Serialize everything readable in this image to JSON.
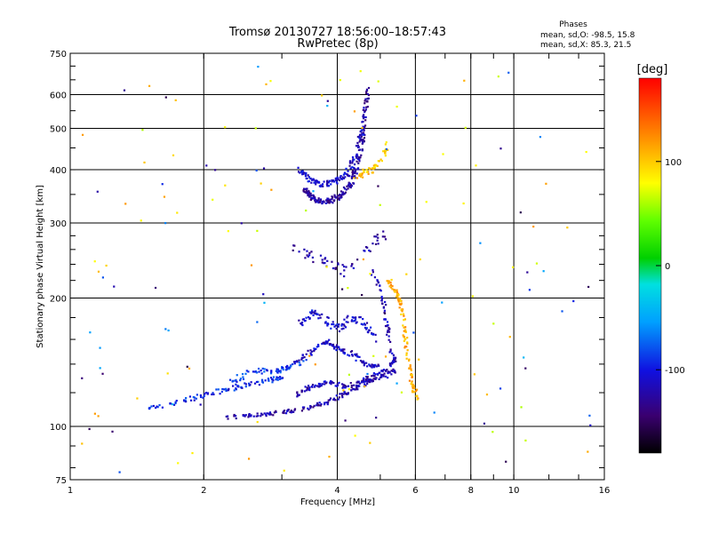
{
  "chart_data": {
    "type": "scatter",
    "title_line1": "Tromsø 20130727 18:56:00–18:57:43",
    "title_line2": "RwPretec (8p)",
    "xlabel": "Frequency [MHz]",
    "ylabel": "Stationary phase Virtual Height [km]",
    "x_scale": "log",
    "y_scale": "log",
    "xlim": [
      1,
      16
    ],
    "ylim": [
      75,
      750
    ],
    "x_ticks": [
      {
        "value": 1,
        "label": "1"
      },
      {
        "value": 2,
        "label": "2"
      },
      {
        "value": 4,
        "label": "4"
      },
      {
        "value": 6,
        "label": "6"
      },
      {
        "value": 8,
        "label": "8"
      },
      {
        "value": 10,
        "label": "10"
      },
      {
        "value": 16,
        "label": "16"
      }
    ],
    "x_gridlines": [
      2,
      4,
      6,
      8,
      10
    ],
    "y_ticks": [
      {
        "value": 75,
        "label": "75"
      },
      {
        "value": 100,
        "label": "100"
      },
      {
        "value": 200,
        "label": "200"
      },
      {
        "value": 300,
        "label": "300"
      },
      {
        "value": 400,
        "label": "400"
      },
      {
        "value": 500,
        "label": "500"
      },
      {
        "value": 600,
        "label": "600"
      },
      {
        "value": 750,
        "label": "750"
      }
    ],
    "y_gridlines": [
      100,
      200,
      300,
      400,
      500,
      600
    ],
    "stats": {
      "heading": "Phases",
      "line_o": "mean, sd,O: -98.5, 15.8",
      "line_x": "mean, sd,X:  85.3, 21.5"
    },
    "colorbar": {
      "label": "[deg]",
      "range": [
        -180,
        180
      ],
      "ticks": [
        {
          "value": 100,
          "label": "100"
        },
        {
          "value": 0,
          "label": "0"
        },
        {
          "value": -100,
          "label": "-100"
        }
      ]
    },
    "traces": [
      {
        "phase": -125,
        "spread_x": 0.025,
        "spread_y": 0.03,
        "density": 6,
        "points": [
          [
            3.35,
            360
          ],
          [
            3.5,
            345
          ],
          [
            3.7,
            335
          ],
          [
            3.9,
            340
          ],
          [
            4.1,
            350
          ],
          [
            4.3,
            370
          ],
          [
            4.45,
            410
          ],
          [
            4.55,
            470
          ],
          [
            4.62,
            540
          ],
          [
            4.68,
            620
          ]
        ]
      },
      {
        "phase": -110,
        "spread_x": 0.025,
        "spread_y": 0.03,
        "density": 5,
        "points": [
          [
            3.3,
            400
          ],
          [
            3.45,
            380
          ],
          [
            3.7,
            370
          ],
          [
            3.95,
            375
          ],
          [
            4.2,
            390
          ],
          [
            4.4,
            430
          ],
          [
            4.55,
            500
          ]
        ]
      },
      {
        "phase": -120,
        "spread_x": 0.03,
        "spread_y": 0.02,
        "density": 5,
        "points": [
          [
            2.2,
            105
          ],
          [
            2.6,
            106
          ],
          [
            3.0,
            108
          ],
          [
            3.4,
            110
          ],
          [
            3.8,
            114
          ],
          [
            4.2,
            120
          ],
          [
            4.6,
            126
          ],
          [
            5.0,
            131
          ],
          [
            5.4,
            136
          ]
        ]
      },
      {
        "phase": -118,
        "spread_x": 0.03,
        "spread_y": 0.02,
        "density": 5,
        "points": [
          [
            3.2,
            118
          ],
          [
            3.5,
            124
          ],
          [
            3.8,
            127
          ],
          [
            4.2,
            124
          ],
          [
            4.6,
            128
          ],
          [
            5.0,
            134
          ],
          [
            5.4,
            142
          ]
        ]
      },
      {
        "phase": -112,
        "spread_x": 0.03,
        "spread_y": 0.025,
        "density": 4,
        "points": [
          [
            3.2,
            140
          ],
          [
            3.5,
            150
          ],
          [
            3.8,
            158
          ],
          [
            4.0,
            152
          ],
          [
            4.3,
            148
          ],
          [
            4.6,
            140
          ],
          [
            5.0,
            138
          ]
        ]
      },
      {
        "phase": -108,
        "spread_x": 0.025,
        "spread_y": 0.04,
        "density": 4,
        "points": [
          [
            3.3,
            175
          ],
          [
            3.5,
            185
          ],
          [
            3.7,
            180
          ],
          [
            4.0,
            170
          ],
          [
            4.3,
            180
          ],
          [
            4.6,
            175
          ],
          [
            4.9,
            160
          ]
        ]
      },
      {
        "phase": -95,
        "spread_x": 0.035,
        "spread_y": 0.025,
        "density": 5,
        "points": [
          [
            1.5,
            110
          ],
          [
            1.8,
            115
          ],
          [
            2.1,
            120
          ],
          [
            2.4,
            124
          ],
          [
            2.8,
            128
          ],
          [
            3.0,
            130
          ]
        ]
      },
      {
        "phase": -88,
        "spread_x": 0.03,
        "spread_y": 0.03,
        "density": 4,
        "points": [
          [
            2.3,
            128
          ],
          [
            2.6,
            135
          ],
          [
            2.9,
            135
          ],
          [
            3.1,
            138
          ],
          [
            3.4,
            143
          ]
        ]
      },
      {
        "phase": -122,
        "spread_x": 0.02,
        "spread_y": 0.05,
        "density": 3,
        "points": [
          [
            3.2,
            260
          ],
          [
            3.5,
            250
          ],
          [
            3.9,
            240
          ],
          [
            4.2,
            230
          ],
          [
            4.8,
            270
          ],
          [
            5.2,
            285
          ]
        ]
      },
      {
        "phase": -115,
        "spread_x": 0.02,
        "spread_y": 0.05,
        "density": 3,
        "points": [
          [
            4.8,
            230
          ],
          [
            5.0,
            210
          ],
          [
            5.1,
            190
          ],
          [
            5.2,
            170
          ],
          [
            5.3,
            150
          ],
          [
            5.4,
            140
          ]
        ]
      },
      {
        "phase": 110,
        "spread_x": 0.02,
        "spread_y": 0.04,
        "density": 4,
        "points": [
          [
            5.2,
            220
          ],
          [
            5.4,
            210
          ],
          [
            5.5,
            200
          ],
          [
            5.6,
            185
          ],
          [
            5.7,
            160
          ],
          [
            5.8,
            140
          ],
          [
            5.9,
            125
          ],
          [
            6.1,
            115
          ]
        ]
      },
      {
        "phase": 100,
        "spread_x": 0.02,
        "spread_y": 0.03,
        "density": 3,
        "points": [
          [
            4.4,
            380
          ],
          [
            4.6,
            395
          ],
          [
            4.8,
            400
          ],
          [
            5.0,
            420
          ],
          [
            5.2,
            460
          ]
        ]
      }
    ],
    "scatter_noise": {
      "count": 150,
      "x_range": [
        1.05,
        15.5
      ],
      "y_range": [
        78,
        700
      ]
    }
  }
}
